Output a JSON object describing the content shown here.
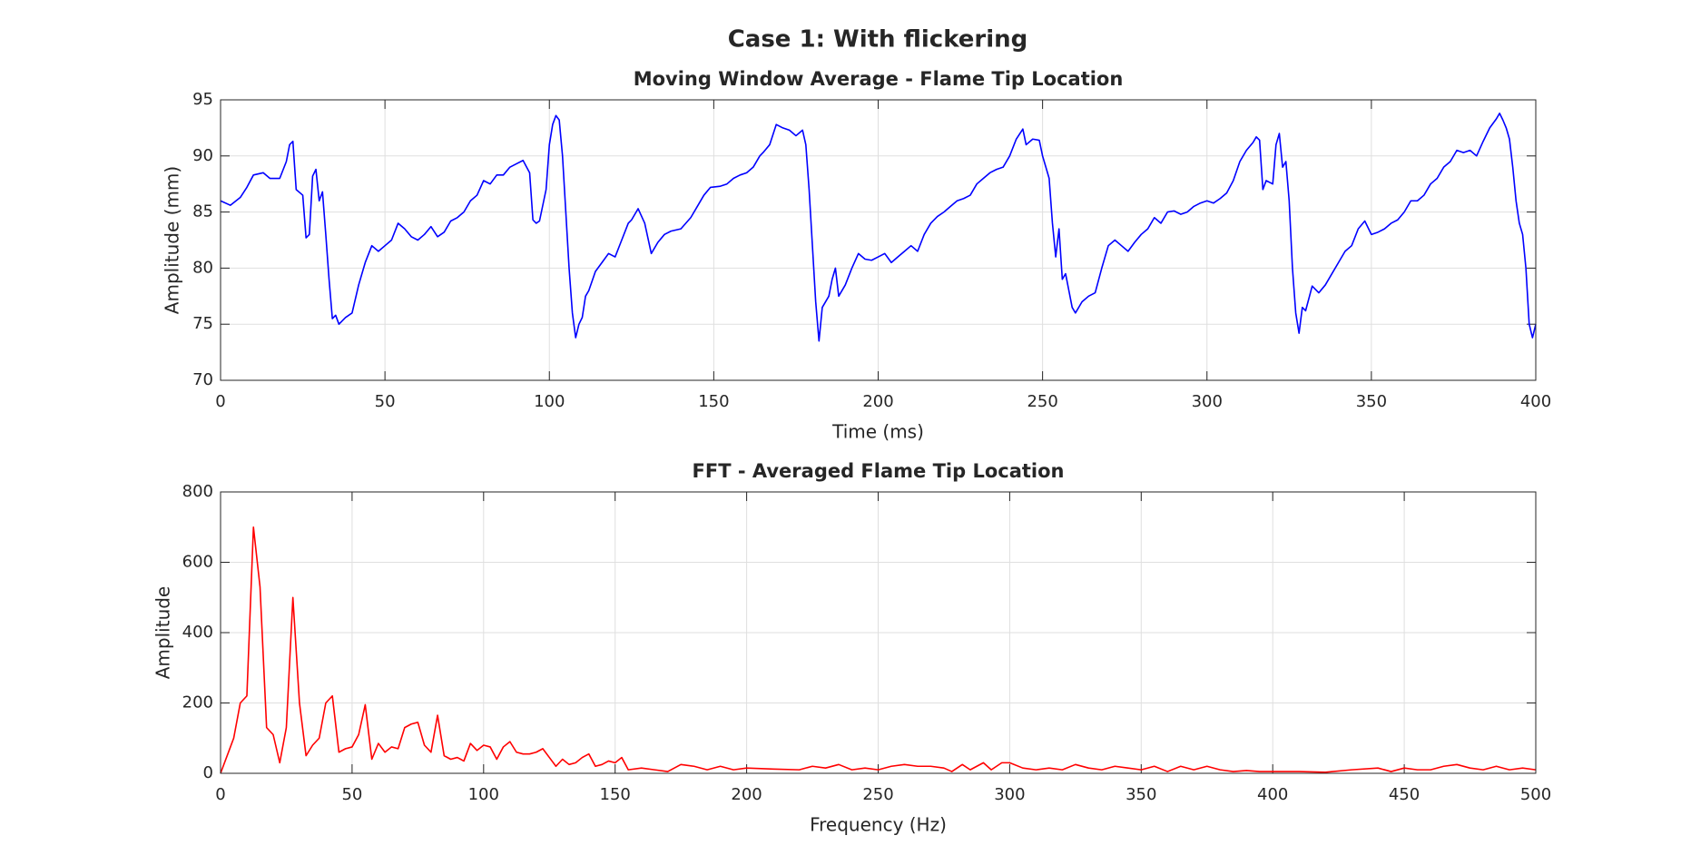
{
  "title": "Case 1: With flickering",
  "chart_data": [
    {
      "type": "line",
      "title": "Moving Window Average - Flame Tip Location",
      "xlabel": "Time (ms)",
      "ylabel": "Amplitude (mm)",
      "xlim": [
        0,
        400
      ],
      "ylim": [
        70,
        95
      ],
      "xticks": [
        0,
        50,
        100,
        150,
        200,
        250,
        300,
        350,
        400
      ],
      "yticks": [
        70,
        75,
        80,
        85,
        90,
        95
      ],
      "grid": true,
      "x": [
        0,
        3,
        6,
        8,
        10,
        13,
        15,
        18,
        20,
        21,
        22,
        23,
        25,
        26,
        27,
        28,
        29,
        30,
        31,
        32,
        33,
        34,
        35,
        36,
        38,
        40,
        42,
        44,
        46,
        48,
        50,
        52,
        54,
        56,
        58,
        60,
        62,
        64,
        66,
        68,
        70,
        72,
        74,
        76,
        78,
        80,
        82,
        84,
        86,
        88,
        90,
        92,
        94,
        95,
        96,
        97,
        99,
        100,
        101,
        102,
        103,
        104,
        105,
        106,
        107,
        108,
        109,
        110,
        111,
        112,
        114,
        116,
        118,
        120,
        122,
        124,
        125,
        127,
        129,
        131,
        133,
        135,
        137,
        140,
        143,
        145,
        147,
        149,
        152,
        154,
        156,
        158,
        160,
        162,
        164,
        165,
        167,
        169,
        171,
        173,
        175,
        177,
        178,
        179,
        180,
        181,
        182,
        183,
        185,
        186,
        187,
        188,
        190,
        192,
        194,
        196,
        198,
        200,
        202,
        204,
        206,
        208,
        210,
        212,
        214,
        216,
        218,
        220,
        222,
        224,
        226,
        228,
        230,
        232,
        234,
        236,
        238,
        240,
        242,
        244,
        245,
        247,
        249,
        250,
        251,
        252,
        253,
        254,
        255,
        256,
        257,
        258,
        259,
        260,
        262,
        264,
        266,
        268,
        270,
        272,
        274,
        276,
        278,
        280,
        282,
        284,
        286,
        288,
        290,
        292,
        294,
        296,
        298,
        300,
        302,
        304,
        306,
        308,
        310,
        312,
        314,
        315,
        316,
        317,
        318,
        320,
        321,
        322,
        323,
        324,
        325,
        326,
        327,
        328,
        329,
        330,
        332,
        334,
        336,
        338,
        340,
        342,
        344,
        346,
        348,
        350,
        352,
        354,
        356,
        358,
        360,
        362,
        364,
        366,
        368,
        370,
        372,
        374,
        376,
        378,
        380,
        382,
        384,
        386,
        388,
        389,
        390,
        391,
        392,
        393,
        394,
        395,
        396,
        397,
        398,
        399,
        400
      ],
      "series": [
        {
          "color": "#0000ff",
          "values": [
            86,
            85.6,
            86.3,
            87.2,
            88.3,
            88.5,
            88,
            88,
            89.5,
            91,
            91.3,
            87,
            86.5,
            82.7,
            83,
            88.2,
            88.8,
            86,
            86.8,
            83,
            79,
            75.5,
            75.8,
            75,
            75.6,
            76,
            78.5,
            80.5,
            82,
            81.5,
            82,
            82.5,
            84,
            83.5,
            82.8,
            82.5,
            83,
            83.7,
            82.8,
            83.2,
            84.2,
            84.5,
            85,
            86,
            86.5,
            87.8,
            87.5,
            88.3,
            88.3,
            89,
            89.3,
            89.6,
            88.5,
            84.3,
            84,
            84.2,
            87,
            91,
            92.8,
            93.6,
            93.2,
            90,
            85,
            80,
            76,
            73.8,
            75,
            75.6,
            77.5,
            78,
            79.7,
            80.5,
            81.3,
            81,
            82.5,
            84,
            84.3,
            85.3,
            84,
            81.3,
            82.3,
            83,
            83.3,
            83.5,
            84.5,
            85.5,
            86.5,
            87.2,
            87.3,
            87.5,
            88,
            88.3,
            88.5,
            89,
            90,
            90.3,
            91,
            92.8,
            92.5,
            92.3,
            91.8,
            92.3,
            91,
            87,
            82,
            77,
            73.5,
            76.5,
            77.5,
            79,
            80,
            77.5,
            78.5,
            80,
            81.3,
            80.8,
            80.7,
            81,
            81.3,
            80.5,
            81,
            81.5,
            82,
            81.5,
            83,
            84,
            84.6,
            85,
            85.5,
            86,
            86.2,
            86.5,
            87.5,
            88,
            88.5,
            88.8,
            89,
            90,
            91.5,
            92.4,
            91,
            91.5,
            91.4,
            90,
            89,
            88,
            84,
            81,
            83.5,
            79,
            79.5,
            78,
            76.5,
            76,
            77,
            77.5,
            77.8,
            80,
            82,
            82.5,
            82,
            81.5,
            82.3,
            83,
            83.5,
            84.5,
            84,
            85,
            85.1,
            84.8,
            85,
            85.5,
            85.8,
            86,
            85.8,
            86.2,
            86.7,
            87.8,
            89.5,
            90.5,
            91.2,
            91.7,
            91.4,
            87,
            87.8,
            87.5,
            91,
            92,
            89,
            89.5,
            86,
            80,
            76,
            74.2,
            76.5,
            76.2,
            78.4,
            77.8,
            78.5,
            79.5,
            80.5,
            81.5,
            82,
            83.5,
            84.2,
            83,
            83.2,
            83.5,
            84,
            84.3,
            85,
            86,
            86,
            86.5,
            87.5,
            88,
            89,
            89.5,
            90.5,
            90.3,
            90.5,
            90,
            91.3,
            92.5,
            93.3,
            93.8,
            93.2,
            92.5,
            91.5,
            89,
            86,
            84,
            83,
            80,
            75,
            73.8,
            75
          ]
        }
      ]
    },
    {
      "type": "line",
      "title": "FFT - Averaged Flame Tip Location",
      "xlabel": "Frequency (Hz)",
      "ylabel": "Amplitude",
      "xlim": [
        0,
        500
      ],
      "ylim": [
        0,
        800
      ],
      "xticks": [
        0,
        50,
        100,
        150,
        200,
        250,
        300,
        350,
        400,
        450,
        500
      ],
      "yticks": [
        0,
        200,
        400,
        600,
        800
      ],
      "grid": true,
      "x": [
        0,
        5,
        7.5,
        10,
        12.5,
        15,
        17.5,
        20,
        22.5,
        25,
        27.5,
        30,
        32.5,
        35,
        37.5,
        40,
        42.5,
        45,
        47.5,
        50,
        52.5,
        55,
        57.5,
        60,
        62.5,
        65,
        67.5,
        70,
        72.5,
        75,
        77.5,
        80,
        82.5,
        85,
        87.5,
        90,
        92.5,
        95,
        97.5,
        100,
        102.5,
        105,
        107.5,
        110,
        112.5,
        115,
        117.5,
        120,
        122.5,
        125,
        127.5,
        130,
        132.5,
        135,
        137.5,
        140,
        142.5,
        145,
        147.5,
        150,
        152.5,
        155,
        160,
        165,
        170,
        175,
        180,
        185,
        190,
        195,
        200,
        210,
        220,
        225,
        230,
        235,
        240,
        245,
        250,
        255,
        260,
        265,
        270,
        275,
        278,
        282,
        285,
        290,
        293,
        297,
        300,
        305,
        310,
        315,
        320,
        325,
        330,
        335,
        340,
        345,
        350,
        355,
        360,
        365,
        370,
        375,
        380,
        385,
        390,
        395,
        400,
        410,
        420,
        430,
        440,
        445,
        450,
        455,
        460,
        465,
        470,
        475,
        480,
        485,
        490,
        495,
        500
      ],
      "series": [
        {
          "color": "#ff0000",
          "values": [
            0,
            100,
            200,
            220,
            700,
            530,
            130,
            110,
            30,
            130,
            500,
            200,
            50,
            80,
            100,
            200,
            220,
            60,
            70,
            75,
            110,
            195,
            40,
            85,
            60,
            75,
            70,
            130,
            140,
            145,
            80,
            60,
            165,
            50,
            40,
            45,
            35,
            85,
            65,
            80,
            75,
            40,
            75,
            90,
            60,
            55,
            55,
            60,
            70,
            45,
            20,
            40,
            25,
            30,
            45,
            55,
            20,
            25,
            35,
            30,
            45,
            10,
            15,
            10,
            5,
            25,
            20,
            10,
            20,
            10,
            15,
            12,
            10,
            20,
            15,
            25,
            10,
            15,
            10,
            20,
            25,
            20,
            20,
            15,
            5,
            25,
            10,
            30,
            10,
            30,
            30,
            15,
            10,
            15,
            10,
            25,
            15,
            10,
            20,
            15,
            10,
            20,
            5,
            20,
            10,
            20,
            10,
            5,
            8,
            5,
            5,
            5,
            3,
            10,
            15,
            5,
            15,
            10,
            10,
            20,
            25,
            15,
            10,
            20,
            10,
            15,
            10
          ]
        }
      ]
    }
  ]
}
